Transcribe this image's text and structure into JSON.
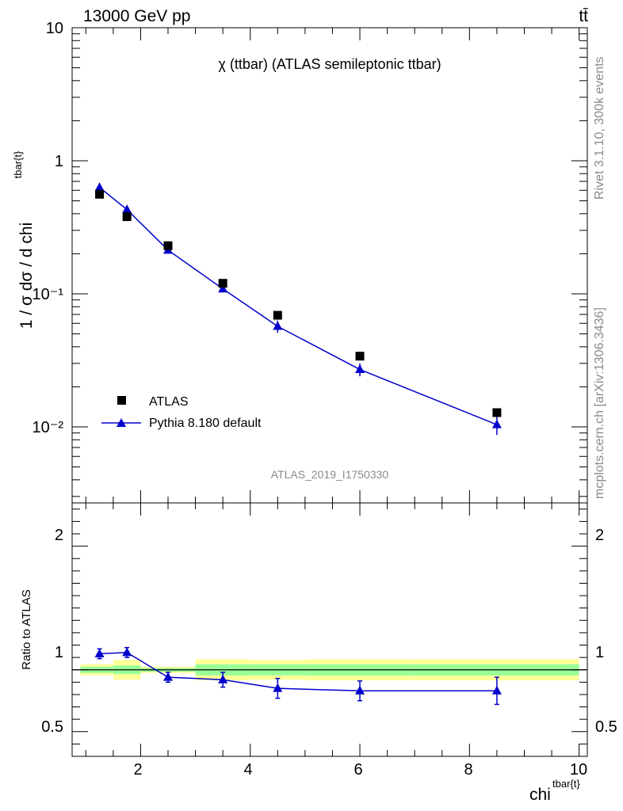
{
  "header": {
    "energy": "13000 GeV pp",
    "process": "tt̄"
  },
  "side": {
    "rivet": "Rivet 3.1.10,  300k events",
    "mcplots": "mcplots.cern.ch [arXiv:1306.3436]"
  },
  "chart_data": [
    {
      "type": "scatter",
      "title": "χ (ttbar) (ATLAS semileptonic ttbar)",
      "watermark": "ATLAS_2019_I1750330",
      "ylabel": "1 / σ dσ / d chi",
      "ylabel_sup": "tbar{t}",
      "yscale": "log",
      "ylim": [
        0.0028,
        10
      ],
      "xlim": [
        0.75,
        10.15
      ],
      "y_tick_labels": [
        "10",
        "1",
        "10⁻¹",
        "10⁻²"
      ],
      "legend": [
        {
          "name": "ATLAS",
          "marker": "square",
          "color": "#000000"
        },
        {
          "name": "Pythia 8.180 default",
          "marker": "triangle",
          "color": "#0000cc"
        }
      ],
      "legend_position": "bottom-left",
      "series": [
        {
          "name": "ATLAS",
          "x": [
            1.25,
            1.75,
            2.5,
            3.5,
            4.5,
            6.0,
            8.5
          ],
          "y": [
            0.56,
            0.38,
            0.23,
            0.12,
            0.069,
            0.034,
            0.0128
          ],
          "marker": "square",
          "color": "#000000"
        },
        {
          "name": "Pythia 8.180 default",
          "x": [
            1.25,
            1.75,
            2.5,
            3.5,
            4.5,
            6.0,
            8.5
          ],
          "y": [
            0.63,
            0.43,
            0.213,
            0.109,
            0.057,
            0.027,
            0.0104
          ],
          "y_err": [
            0.02,
            0.015,
            0.008,
            0.006,
            0.006,
            0.003,
            0.0017
          ],
          "marker": "triangle",
          "color": "#0000cc"
        }
      ]
    },
    {
      "type": "scatter",
      "ylabel": "Ratio to ATLAS",
      "xlabel": "chi",
      "xlabel_sup": "tbar{t}",
      "ylim": [
        0.3,
        2.35
      ],
      "xlim": [
        0.75,
        10.15
      ],
      "x_ticks": [
        2,
        4,
        6,
        8,
        10
      ],
      "y_ticks": [
        0.5,
        1,
        2
      ],
      "x_tick_labels": [
        "2",
        "4",
        "6",
        "8",
        "10"
      ],
      "y_tick_labels": [
        "0.5",
        "1",
        "2"
      ],
      "reference_line": 1,
      "bands": [
        {
          "x0": 0.9,
          "x1": 1.5,
          "yellow": [
            0.955,
            1.045
          ],
          "green": [
            0.975,
            1.025
          ]
        },
        {
          "x0": 1.5,
          "x1": 2.0,
          "yellow": [
            0.92,
            1.08
          ],
          "green": [
            0.965,
            1.035
          ]
        },
        {
          "x0": 2.0,
          "x1": 3.0,
          "yellow": [
            0.975,
            1.025
          ],
          "green": [
            0.985,
            1.015
          ]
        },
        {
          "x0": 3.0,
          "x1": 4.0,
          "yellow": [
            0.915,
            1.085
          ],
          "green": [
            0.955,
            1.045
          ]
        },
        {
          "x0": 4.0,
          "x1": 5.0,
          "yellow": [
            0.92,
            1.08
          ],
          "green": [
            0.955,
            1.045
          ]
        },
        {
          "x0": 5.0,
          "x1": 7.0,
          "yellow": [
            0.915,
            1.085
          ],
          "green": [
            0.955,
            1.045
          ]
        },
        {
          "x0": 7.0,
          "x1": 10.0,
          "yellow": [
            0.915,
            1.085
          ],
          "green": [
            0.955,
            1.045
          ]
        }
      ],
      "series": [
        {
          "name": "Pythia 8.180 default",
          "x": [
            1.25,
            1.75,
            2.5,
            3.5,
            4.5,
            6.0,
            8.5
          ],
          "y": [
            1.13,
            1.14,
            0.94,
            0.92,
            0.85,
            0.83,
            0.83
          ],
          "y_err": [
            0.04,
            0.04,
            0.04,
            0.06,
            0.08,
            0.08,
            0.11
          ],
          "marker": "triangle",
          "color": "#0000cc"
        }
      ]
    }
  ]
}
